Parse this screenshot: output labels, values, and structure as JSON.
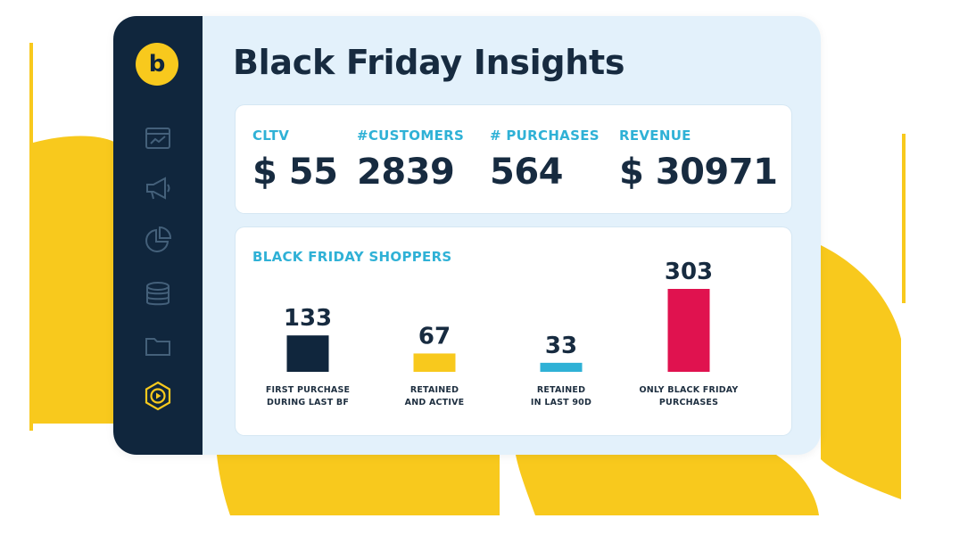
{
  "app": {
    "logo_letter": "b",
    "title": "Black Friday Insights",
    "colors": {
      "sidebar": "#10263d",
      "accent_yellow": "#f8c91d",
      "accent_cyan": "#2fb1d6",
      "accent_red": "#e0124f",
      "panel_bg": "#e3f1fb"
    }
  },
  "sidebar": {
    "items": [
      {
        "icon": "dashboard-icon"
      },
      {
        "icon": "megaphone-icon"
      },
      {
        "icon": "pie-chart-icon"
      },
      {
        "icon": "database-icon"
      },
      {
        "icon": "folder-icon"
      },
      {
        "icon": "play-hexagon-icon",
        "active": true
      }
    ]
  },
  "metrics": [
    {
      "label": "CLTV",
      "value": "$ 55"
    },
    {
      "label": "#CUSTOMERS",
      "value": "2839"
    },
    {
      "label": "# PURCHASES",
      "value": "564"
    },
    {
      "label": "REVENUE",
      "value": "$ 30971"
    }
  ],
  "shoppers": {
    "title": "BLACK FRIDAY SHOPPERS"
  },
  "chart_data": {
    "type": "bar",
    "title": "BLACK FRIDAY SHOPPERS",
    "categories": [
      [
        "FIRST PURCHASE",
        "DURING LAST BF"
      ],
      [
        "RETAINED",
        "AND ACTIVE"
      ],
      [
        "RETAINED",
        "IN LAST 90D"
      ],
      [
        "ONLY BLACK FRIDAY",
        "PURCHASES"
      ]
    ],
    "values": [
      133,
      67,
      33,
      303
    ],
    "data_labels": [
      "133",
      "67",
      "33",
      "303"
    ],
    "colors": [
      "#10263d",
      "#f8c91d",
      "#2fb1d6",
      "#e0124f"
    ],
    "ylim": [
      0,
      303
    ],
    "grid": false,
    "xlabel": "",
    "ylabel": ""
  }
}
